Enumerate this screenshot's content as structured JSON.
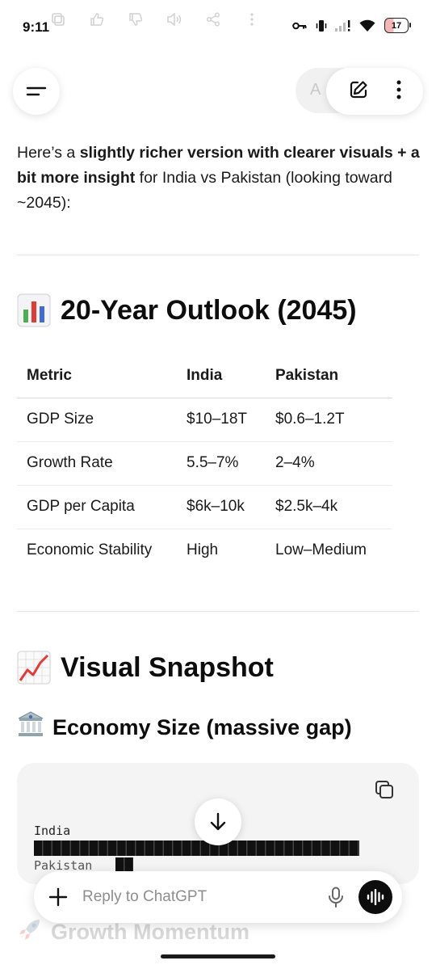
{
  "status_bar": {
    "time": "9:11",
    "battery": "17",
    "icons": [
      "key-icon",
      "vibrate-icon",
      "signal-icon",
      "wifi-icon",
      "battery-icon"
    ]
  },
  "header": {
    "model_label_partial": "A",
    "icons": [
      "menu-icon",
      "edit-icon",
      "more-vertical-icon"
    ]
  },
  "message": {
    "intro_pre": "Here’s a ",
    "intro_bold": "slightly richer version with clearer visuals + a bit more insight",
    "intro_post": " for India vs Pakistan (looking toward ~2045):",
    "outlook_heading": "20-Year Outlook (2045)",
    "table": {
      "headers": [
        "Metric",
        "India",
        "Pakistan"
      ],
      "rows": [
        [
          "GDP Size",
          "$10–18T",
          "$0.6–1.2T"
        ],
        [
          "Growth Rate",
          "5.5–7%",
          "2–4%"
        ],
        [
          "GDP per Capita",
          "$6k–10k",
          "$2.5k–4k"
        ],
        [
          "Economic Stability",
          "High",
          "Low–Medium"
        ]
      ]
    },
    "snapshot_heading": "Visual Snapshot",
    "economy_heading": "Economy Size (massive gap)",
    "code": {
      "line1": "India",
      "line2_label": "Pakistan",
      "india_bar_blocks": 35,
      "pakistan_bar_blocks": 2
    },
    "next_heading": "Growth Momentum"
  },
  "composer": {
    "placeholder": "Reply to ChatGPT"
  }
}
